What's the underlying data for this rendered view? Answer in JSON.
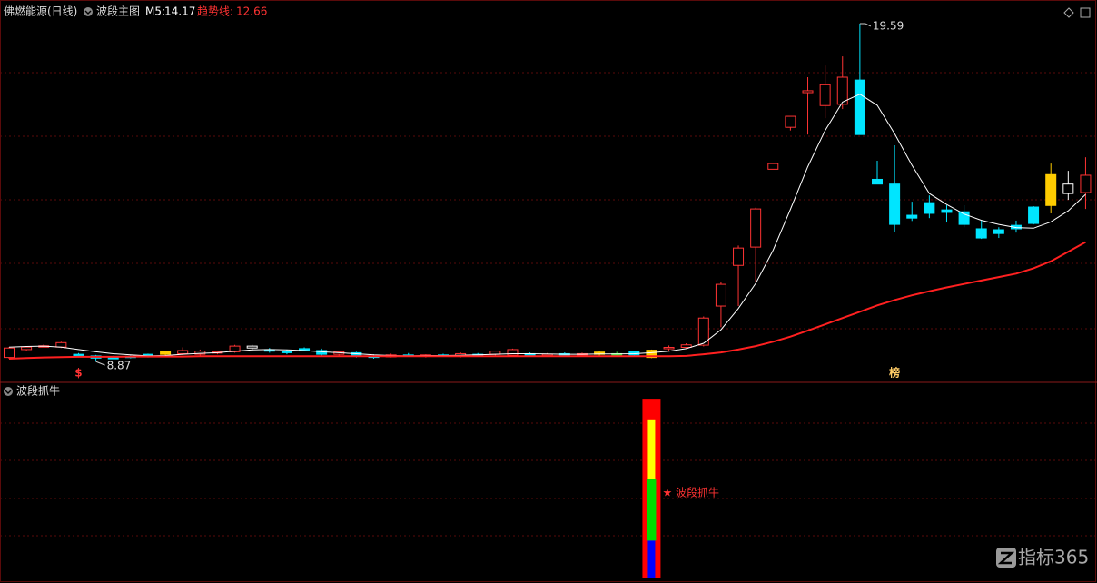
{
  "chart_data": {
    "type": "candlestick",
    "title": "佛燃能源(日线)",
    "subtitle": "波段主图",
    "ylim": [
      8.24,
      19.82
    ],
    "candles": {
      "open": [
        9.0,
        9.25,
        9.37,
        9.33,
        9.1,
        9.05,
        9.0,
        9.04,
        9.1,
        9.1,
        9.12,
        9.1,
        9.15,
        9.18,
        9.36,
        9.25,
        9.2,
        9.28,
        9.22,
        9.1,
        9.15,
        9.05,
        9.02,
        9.08,
        9.05,
        9.08,
        9.04,
        9.1,
        9.1,
        9.07,
        9.12,
        9.08,
        9.12,
        9.08,
        9.1,
        9.12,
        9.18,
        9.0,
        9.3,
        9.32,
        9.39,
        10.63,
        11.92,
        12.5,
        14.97,
        16.3,
        17.4,
        16.99,
        17.03,
        17.8,
        14.65,
        14.5,
        13.51,
        13.91,
        13.68,
        13.62,
        13.08,
        13.05,
        13.19,
        13.77,
        13.82,
        14.2,
        14.23
      ],
      "high": [
        9.33,
        9.36,
        9.42,
        9.5,
        9.14,
        9.08,
        9.05,
        9.08,
        9.12,
        9.2,
        9.32,
        9.25,
        9.22,
        9.4,
        9.4,
        9.3,
        9.25,
        9.32,
        9.28,
        9.22,
        9.18,
        9.1,
        9.12,
        9.14,
        9.1,
        9.12,
        9.16,
        9.14,
        9.22,
        9.28,
        9.16,
        9.14,
        9.16,
        9.15,
        9.2,
        9.18,
        9.2,
        9.25,
        9.38,
        9.45,
        10.3,
        11.4,
        12.55,
        13.75,
        15.15,
        16.65,
        17.89,
        18.26,
        18.55,
        19.59,
        15.24,
        15.73,
        13.94,
        14.14,
        13.83,
        13.83,
        13.36,
        13.13,
        13.34,
        13.8,
        15.15,
        14.92,
        15.35
      ],
      "low": [
        8.96,
        9.22,
        9.33,
        9.3,
        9.0,
        8.87,
        8.95,
        8.97,
        9.0,
        9.05,
        9.08,
        9.05,
        9.1,
        9.15,
        9.2,
        9.15,
        9.1,
        9.2,
        9.05,
        9.05,
        9.0,
        8.96,
        9.0,
        9.02,
        9.0,
        9.02,
        9.0,
        9.02,
        9.05,
        9.02,
        9.04,
        9.02,
        9.05,
        9.04,
        9.05,
        9.06,
        9.02,
        8.98,
        9.2,
        9.28,
        9.35,
        9.96,
        10.63,
        11.4,
        14.97,
        16.2,
        16.07,
        16.59,
        16.88,
        16.07,
        14.5,
        12.99,
        13.33,
        13.42,
        13.28,
        13.13,
        12.76,
        12.79,
        12.96,
        13.22,
        13.57,
        14.0,
        13.71
      ],
      "close": [
        9.3,
        9.33,
        9.36,
        9.47,
        9.05,
        8.98,
        8.99,
        9.02,
        9.05,
        9.18,
        9.22,
        9.2,
        9.18,
        9.36,
        9.3,
        9.2,
        9.15,
        9.22,
        9.1,
        9.18,
        9.05,
        9.0,
        9.08,
        9.06,
        9.08,
        9.04,
        9.12,
        9.05,
        9.2,
        9.25,
        9.08,
        9.1,
        9.07,
        9.12,
        9.17,
        9.09,
        9.08,
        9.23,
        9.32,
        9.4,
        10.25,
        11.32,
        12.47,
        13.71,
        15.15,
        16.65,
        17.46,
        17.65,
        17.89,
        16.07,
        14.5,
        13.22,
        13.42,
        13.57,
        13.6,
        13.22,
        12.79,
        12.93,
        13.08,
        13.25,
        14.8,
        14.5,
        14.78
      ],
      "colors": [
        "#ff3333",
        "#ff3333",
        "#ff3333",
        "#ff3333",
        "#00e5ff",
        "#00e5ff",
        "#00e5ff",
        "#00e5ff",
        "#00e5ff",
        "#ffcc00",
        "#ff3333",
        "#ff3333",
        "#ff3333",
        "#ff3333",
        "#ffffff",
        "#00e5ff",
        "#00e5ff",
        "#00e5ff",
        "#00e5ff",
        "#ff3333",
        "#00e5ff",
        "#00e5ff",
        "#ff3333",
        "#00e5ff",
        "#ff3333",
        "#00e5ff",
        "#ff3333",
        "#00e5ff",
        "#ff3333",
        "#ff3333",
        "#00e5ff",
        "#ff3333",
        "#00e5ff",
        "#ff3333",
        "#ffcc00",
        "#33dd33",
        "#00e5ff",
        "#ffcc00",
        "#ff3333",
        "#ff3333",
        "#ff3333",
        "#ff3333",
        "#ff3333",
        "#ff3333",
        "#ff3333",
        "#ff3333",
        "#ff3333",
        "#ff3333",
        "#ff3333",
        "#00e5ff",
        "#00e5ff",
        "#00e5ff",
        "#00e5ff",
        "#00e5ff",
        "#00e5ff",
        "#00e5ff",
        "#00e5ff",
        "#00e5ff",
        "#00e5ff",
        "#00e5ff",
        "#ffcc00",
        "#ffffff",
        "#ff3333"
      ],
      "filled": [
        false,
        false,
        true,
        false,
        true,
        true,
        true,
        true,
        true,
        true,
        false,
        false,
        false,
        false,
        false,
        true,
        true,
        true,
        true,
        false,
        true,
        true,
        false,
        true,
        false,
        true,
        false,
        true,
        false,
        false,
        true,
        false,
        true,
        false,
        true,
        true,
        true,
        true,
        false,
        false,
        false,
        false,
        false,
        false,
        false,
        false,
        false,
        false,
        false,
        true,
        true,
        true,
        true,
        true,
        true,
        true,
        true,
        true,
        true,
        true,
        true,
        false,
        false
      ]
    },
    "series": [
      {
        "name": "M5:",
        "color": "#ffffff",
        "values": [
          9.33,
          9.35,
          9.36,
          9.33,
          9.25,
          9.18,
          9.12,
          9.08,
          9.05,
          9.06,
          9.1,
          9.13,
          9.15,
          9.2,
          9.24,
          9.25,
          9.24,
          9.22,
          9.18,
          9.15,
          9.12,
          9.08,
          9.06,
          9.05,
          9.06,
          9.06,
          9.07,
          9.08,
          9.1,
          9.12,
          9.12,
          9.11,
          9.1,
          9.1,
          9.11,
          9.11,
          9.12,
          9.15,
          9.2,
          9.28,
          9.45,
          9.88,
          10.55,
          11.35,
          12.4,
          13.7,
          15.05,
          16.2,
          17.1,
          17.35,
          17.0,
          16.1,
          15.1,
          14.2,
          13.85,
          13.55,
          13.35,
          13.22,
          13.12,
          13.1,
          13.3,
          13.65,
          14.17
        ]
      },
      {
        "name": "趋势线:",
        "color": "#ff2020",
        "values": [
          8.96,
          8.98,
          9.0,
          9.01,
          9.02,
          9.02,
          9.02,
          9.03,
          9.03,
          9.03,
          9.03,
          9.04,
          9.04,
          9.04,
          9.04,
          9.04,
          9.04,
          9.04,
          9.04,
          9.04,
          9.04,
          9.04,
          9.04,
          9.04,
          9.04,
          9.04,
          9.04,
          9.04,
          9.04,
          9.04,
          9.04,
          9.04,
          9.04,
          9.04,
          9.04,
          9.04,
          9.04,
          9.04,
          9.04,
          9.05,
          9.1,
          9.16,
          9.25,
          9.36,
          9.5,
          9.66,
          9.85,
          10.05,
          10.25,
          10.45,
          10.65,
          10.82,
          10.97,
          11.1,
          11.22,
          11.33,
          11.44,
          11.55,
          11.66,
          11.83,
          12.05,
          12.35,
          12.66
        ]
      }
    ],
    "markers": [
      {
        "index": 4,
        "text": "$",
        "color": "#ff3333"
      },
      {
        "index": 51,
        "text": "榜",
        "color": "#ffcc66"
      }
    ],
    "indicator": {
      "title": "波段抓牛",
      "type": "bar",
      "index": 37,
      "ylim": [
        0,
        100
      ],
      "label": "★ 波段抓牛",
      "layers": [
        {
          "color": "#ff0000",
          "low": 2.4,
          "high": 95.7
        },
        {
          "color": "#ffff00",
          "low": 22,
          "high": 85
        },
        {
          "color": "#00dd00",
          "low": 22,
          "high": 54
        },
        {
          "color": "#0000ff",
          "low": 2.4,
          "high": 22
        }
      ]
    }
  },
  "watermark": "指标365"
}
